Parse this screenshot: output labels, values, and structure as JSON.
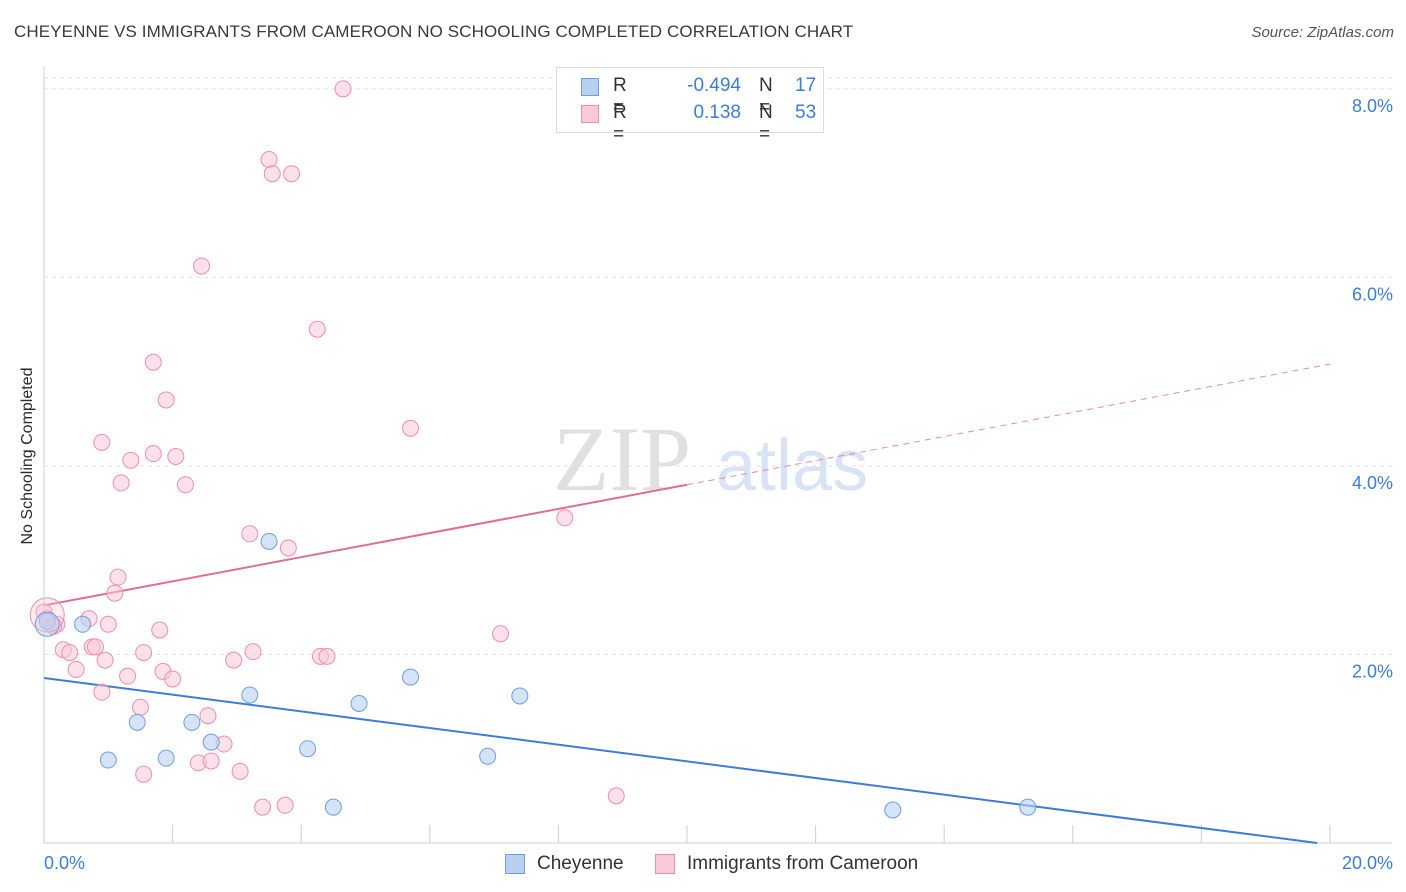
{
  "title": "CHEYENNE VS IMMIGRANTS FROM CAMEROON NO SCHOOLING COMPLETED CORRELATION CHART",
  "source": "Source: ZipAtlas.com",
  "watermark": {
    "part1": "ZIP",
    "part2": "atlas"
  },
  "legend": {
    "rows": [
      {
        "r_label": "R =",
        "r_value": "-0.494",
        "n_label": "N =",
        "n_value": "17",
        "fill": "#b8d0f0",
        "stroke": "#6f9ee0"
      },
      {
        "r_label": "R =",
        "r_value": "0.138",
        "n_label": "N =",
        "n_value": "53",
        "fill": "#f9c9d8",
        "stroke": "#ee8eaa"
      }
    ]
  },
  "bottom_legend": {
    "series1": "Cheyenne",
    "series2": "Immigrants from Cameroon"
  },
  "chart_data": {
    "type": "scatter",
    "title": "CHEYENNE VS IMMIGRANTS FROM CAMEROON NO SCHOOLING COMPLETED CORRELATION CHART",
    "xlabel": "",
    "ylabel": "No Schooling Completed",
    "xlim": [
      0,
      20
    ],
    "ylim": [
      0,
      8.2
    ],
    "x_tick_labels": [
      "0.0%",
      "20.0%"
    ],
    "y_ticks": [
      2,
      4,
      6,
      8
    ],
    "y_tick_labels": [
      "2.0%",
      "4.0%",
      "6.0%",
      "8.0%"
    ],
    "grid": "horizontal dashed",
    "legend_placement": "top-center",
    "series": [
      {
        "name": "Cheyenne",
        "color": "#6f9ee0",
        "fill": "#b8d0f0",
        "points": [
          [
            0.05,
            2.35
          ],
          [
            0.6,
            2.32
          ],
          [
            1.0,
            0.88
          ],
          [
            1.45,
            1.28
          ],
          [
            1.9,
            0.9
          ],
          [
            2.3,
            1.28
          ],
          [
            2.6,
            1.07
          ],
          [
            3.2,
            1.57
          ],
          [
            3.5,
            3.2
          ],
          [
            4.1,
            1.0
          ],
          [
            4.5,
            0.38
          ],
          [
            4.9,
            1.48
          ],
          [
            5.7,
            1.76
          ],
          [
            6.9,
            0.92
          ],
          [
            7.4,
            1.56
          ],
          [
            13.2,
            0.35
          ],
          [
            15.3,
            0.38
          ]
        ],
        "trend": {
          "x": [
            0,
            19.8
          ],
          "y": [
            1.75,
            0.0
          ]
        }
      },
      {
        "name": "Immigrants from Cameroon",
        "color": "#ee8eaa",
        "fill": "#f9c9d8",
        "points": [
          [
            0.0,
            2.45
          ],
          [
            0.2,
            2.32
          ],
          [
            0.3,
            2.05
          ],
          [
            0.4,
            2.02
          ],
          [
            0.5,
            1.84
          ],
          [
            0.7,
            2.38
          ],
          [
            0.75,
            2.08
          ],
          [
            0.8,
            2.08
          ],
          [
            0.9,
            1.6
          ],
          [
            0.95,
            1.94
          ],
          [
            0.9,
            4.25
          ],
          [
            1.0,
            2.32
          ],
          [
            1.1,
            2.65
          ],
          [
            1.15,
            2.82
          ],
          [
            1.2,
            3.82
          ],
          [
            1.3,
            1.77
          ],
          [
            1.35,
            4.06
          ],
          [
            1.55,
            2.02
          ],
          [
            1.5,
            1.44
          ],
          [
            1.55,
            0.73
          ],
          [
            1.7,
            5.1
          ],
          [
            1.7,
            4.13
          ],
          [
            1.8,
            2.26
          ],
          [
            1.85,
            1.82
          ],
          [
            1.9,
            4.7
          ],
          [
            2.0,
            1.74
          ],
          [
            2.05,
            4.1
          ],
          [
            2.2,
            3.8
          ],
          [
            2.4,
            0.85
          ],
          [
            2.45,
            6.12
          ],
          [
            2.55,
            1.35
          ],
          [
            2.6,
            0.87
          ],
          [
            2.8,
            1.05
          ],
          [
            2.95,
            1.94
          ],
          [
            3.05,
            0.76
          ],
          [
            3.2,
            3.28
          ],
          [
            3.25,
            2.03
          ],
          [
            3.4,
            0.38
          ],
          [
            3.5,
            7.25
          ],
          [
            3.55,
            7.1
          ],
          [
            3.75,
            0.4
          ],
          [
            3.8,
            3.13
          ],
          [
            3.85,
            7.1
          ],
          [
            4.25,
            5.45
          ],
          [
            4.3,
            1.98
          ],
          [
            4.4,
            1.98
          ],
          [
            4.65,
            8.0
          ],
          [
            5.7,
            4.4
          ],
          [
            7.1,
            2.22
          ],
          [
            8.1,
            3.45
          ],
          [
            8.9,
            0.5
          ],
          [
            0.05,
            2.38
          ],
          [
            0.15,
            2.3
          ]
        ],
        "trend": {
          "x": [
            0,
            10
          ],
          "y": [
            2.52,
            3.8
          ]
        },
        "trend_extension": {
          "x": [
            10,
            20
          ],
          "y": [
            3.8,
            5.08
          ]
        }
      }
    ]
  }
}
